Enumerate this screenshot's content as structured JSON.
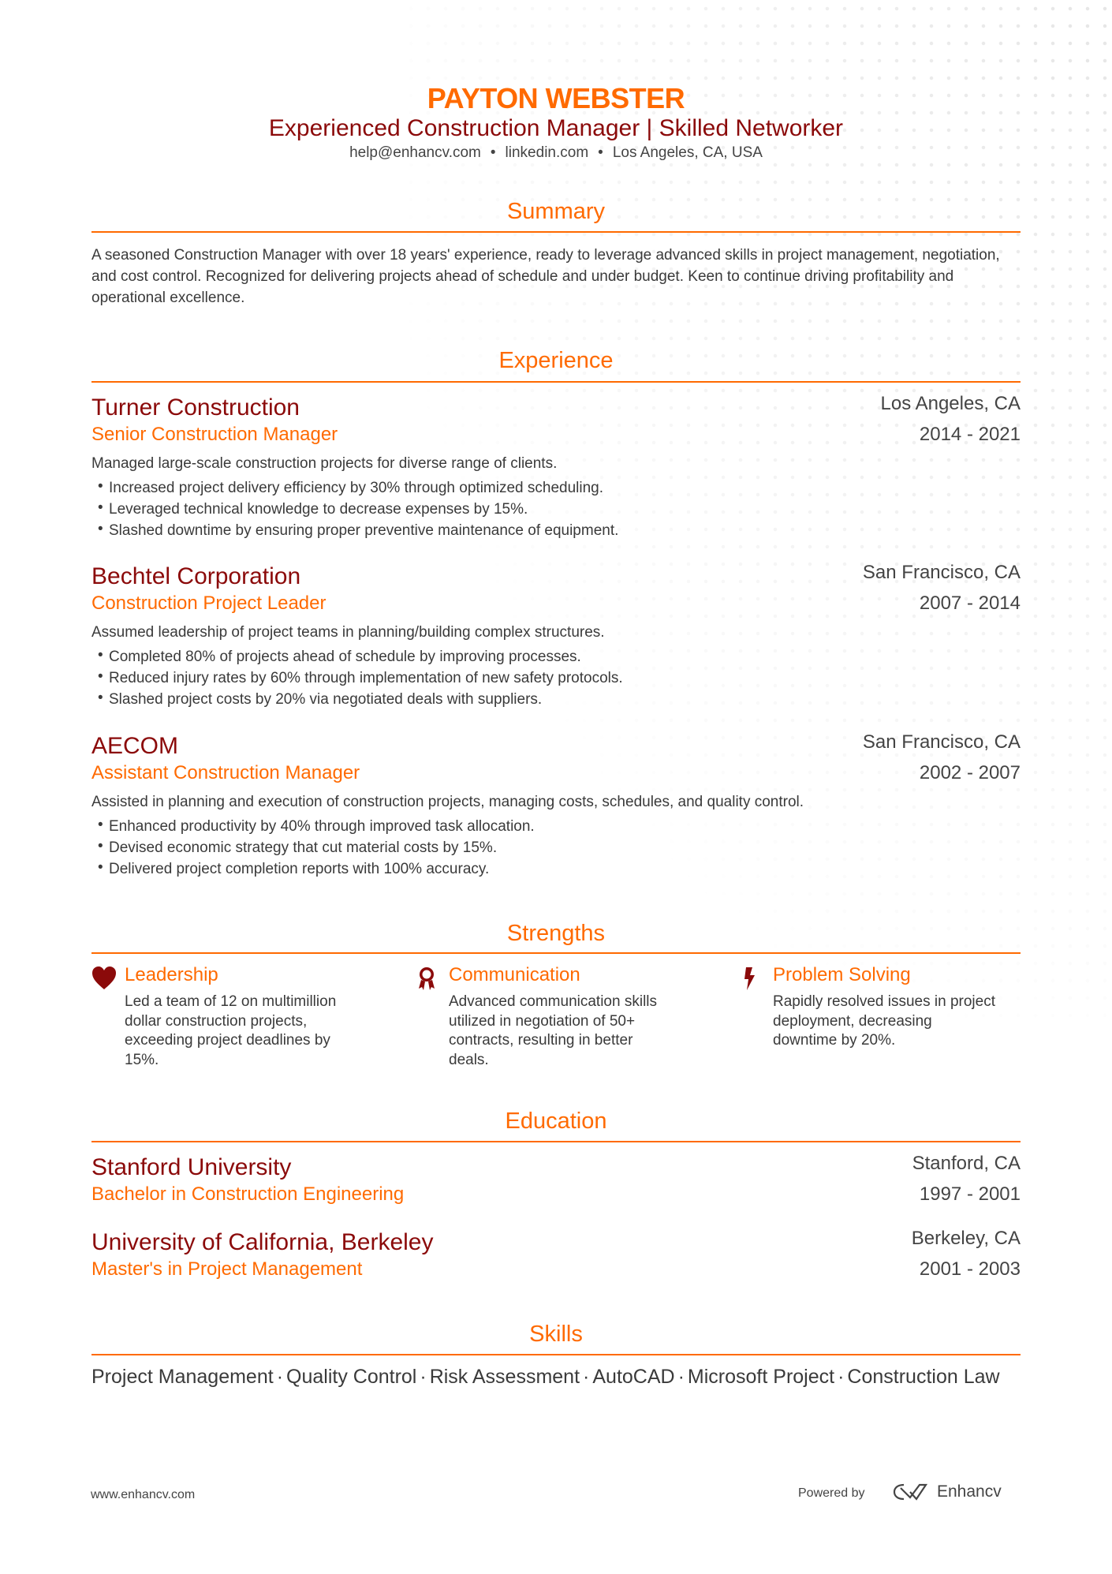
{
  "header": {
    "name": "PAYTON WEBSTER",
    "title": "Experienced Construction Manager | Skilled Networker",
    "email": "help@enhancv.com",
    "linkedin": "linkedin.com",
    "location": "Los Angeles, CA, USA"
  },
  "summary": {
    "heading": "Summary",
    "text": "A seasoned Construction Manager with over 18 years' experience, ready to leverage advanced skills in project management, negotiation, and cost control. Recognized for delivering projects ahead of schedule and under budget. Keen to continue driving profitability and operational excellence."
  },
  "experience": {
    "heading": "Experience",
    "items": [
      {
        "company": "Turner Construction",
        "role": "Senior Construction Manager",
        "location": "Los Angeles, CA",
        "dates": "2014 - 2021",
        "description": "Managed large-scale construction projects for diverse range of clients.",
        "bullets": [
          "Increased project delivery efficiency by 30% through optimized scheduling.",
          "Leveraged technical knowledge to decrease expenses by 15%.",
          "Slashed downtime by ensuring proper preventive maintenance of equipment."
        ]
      },
      {
        "company": "Bechtel Corporation",
        "role": "Construction Project Leader",
        "location": "San Francisco, CA",
        "dates": "2007 - 2014",
        "description": "Assumed leadership of project teams in planning/building complex structures.",
        "bullets": [
          "Completed 80% of projects ahead of schedule by improving processes.",
          "Reduced injury rates by 60% through implementation of new safety protocols.",
          "Slashed project costs by 20% via negotiated deals with suppliers."
        ]
      },
      {
        "company": "AECOM",
        "role": "Assistant Construction Manager",
        "location": "San Francisco, CA",
        "dates": "2002 - 2007",
        "description": "Assisted in planning and execution of construction projects, managing costs, schedules, and quality control.",
        "bullets": [
          "Enhanced productivity by 40% through improved task allocation.",
          "Devised economic strategy that cut material costs by 15%.",
          "Delivered project completion reports with 100% accuracy."
        ]
      }
    ]
  },
  "strengths": {
    "heading": "Strengths",
    "items": [
      {
        "icon": "heart-icon",
        "title": "Leadership",
        "text": "Led a team of 12 on multimillion dollar construction projects, exceeding project deadlines by 15%."
      },
      {
        "icon": "award-ribbon-icon",
        "title": "Communication",
        "text": "Advanced communication skills utilized in negotiation of 50+ contracts, resulting in better deals."
      },
      {
        "icon": "lightning-bolt-icon",
        "title": "Problem Solving",
        "text": "Rapidly resolved issues in project deployment, decreasing downtime by 20%."
      }
    ]
  },
  "education": {
    "heading": "Education",
    "items": [
      {
        "school": "Stanford University",
        "degree": "Bachelor in Construction Engineering",
        "location": "Stanford, CA",
        "dates": "1997 - 2001"
      },
      {
        "school": "University of California, Berkeley",
        "degree": "Master's in Project Management",
        "location": "Berkeley, CA",
        "dates": "2001 - 2003"
      }
    ]
  },
  "skills": {
    "heading": "Skills",
    "items": [
      "Project Management",
      "Quality Control",
      "Risk Assessment",
      "AutoCAD",
      "Microsoft Project",
      "Construction Law"
    ],
    "separator": "·"
  },
  "footer": {
    "website": "www.enhancv.com",
    "powered_by": "Powered by",
    "brand": "Enhancv"
  },
  "colors": {
    "accent": "#ff6a00",
    "dark_red": "#8b0a0a",
    "text": "#3a3a3a"
  }
}
